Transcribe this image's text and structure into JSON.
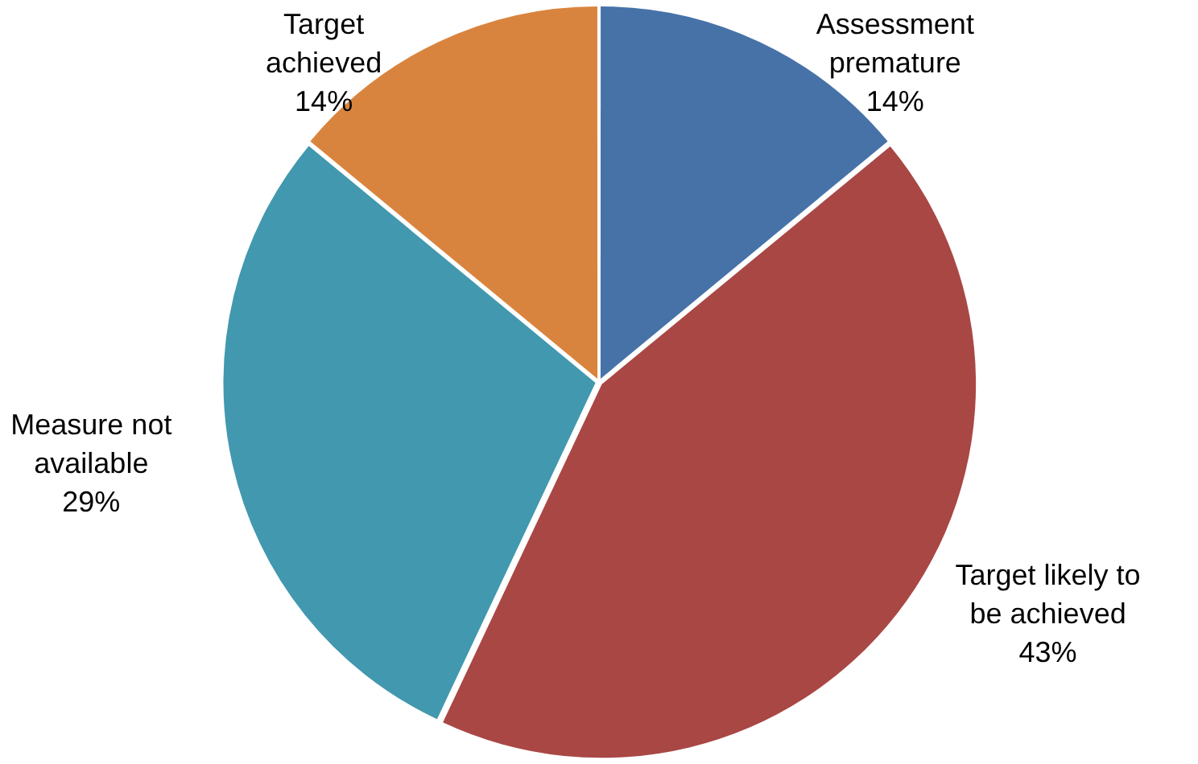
{
  "chart_data": {
    "type": "pie",
    "categories": [
      "Assessment premature",
      "Target likely to be achieved",
      "Measure not available",
      "Target achieved"
    ],
    "values": [
      14,
      43,
      29,
      14
    ],
    "value_labels": [
      "14%",
      "43%",
      "29%",
      "14%"
    ],
    "colors": [
      "#4672a8",
      "#a94745",
      "#4298ae",
      "#d9843e"
    ],
    "legend": false
  }
}
